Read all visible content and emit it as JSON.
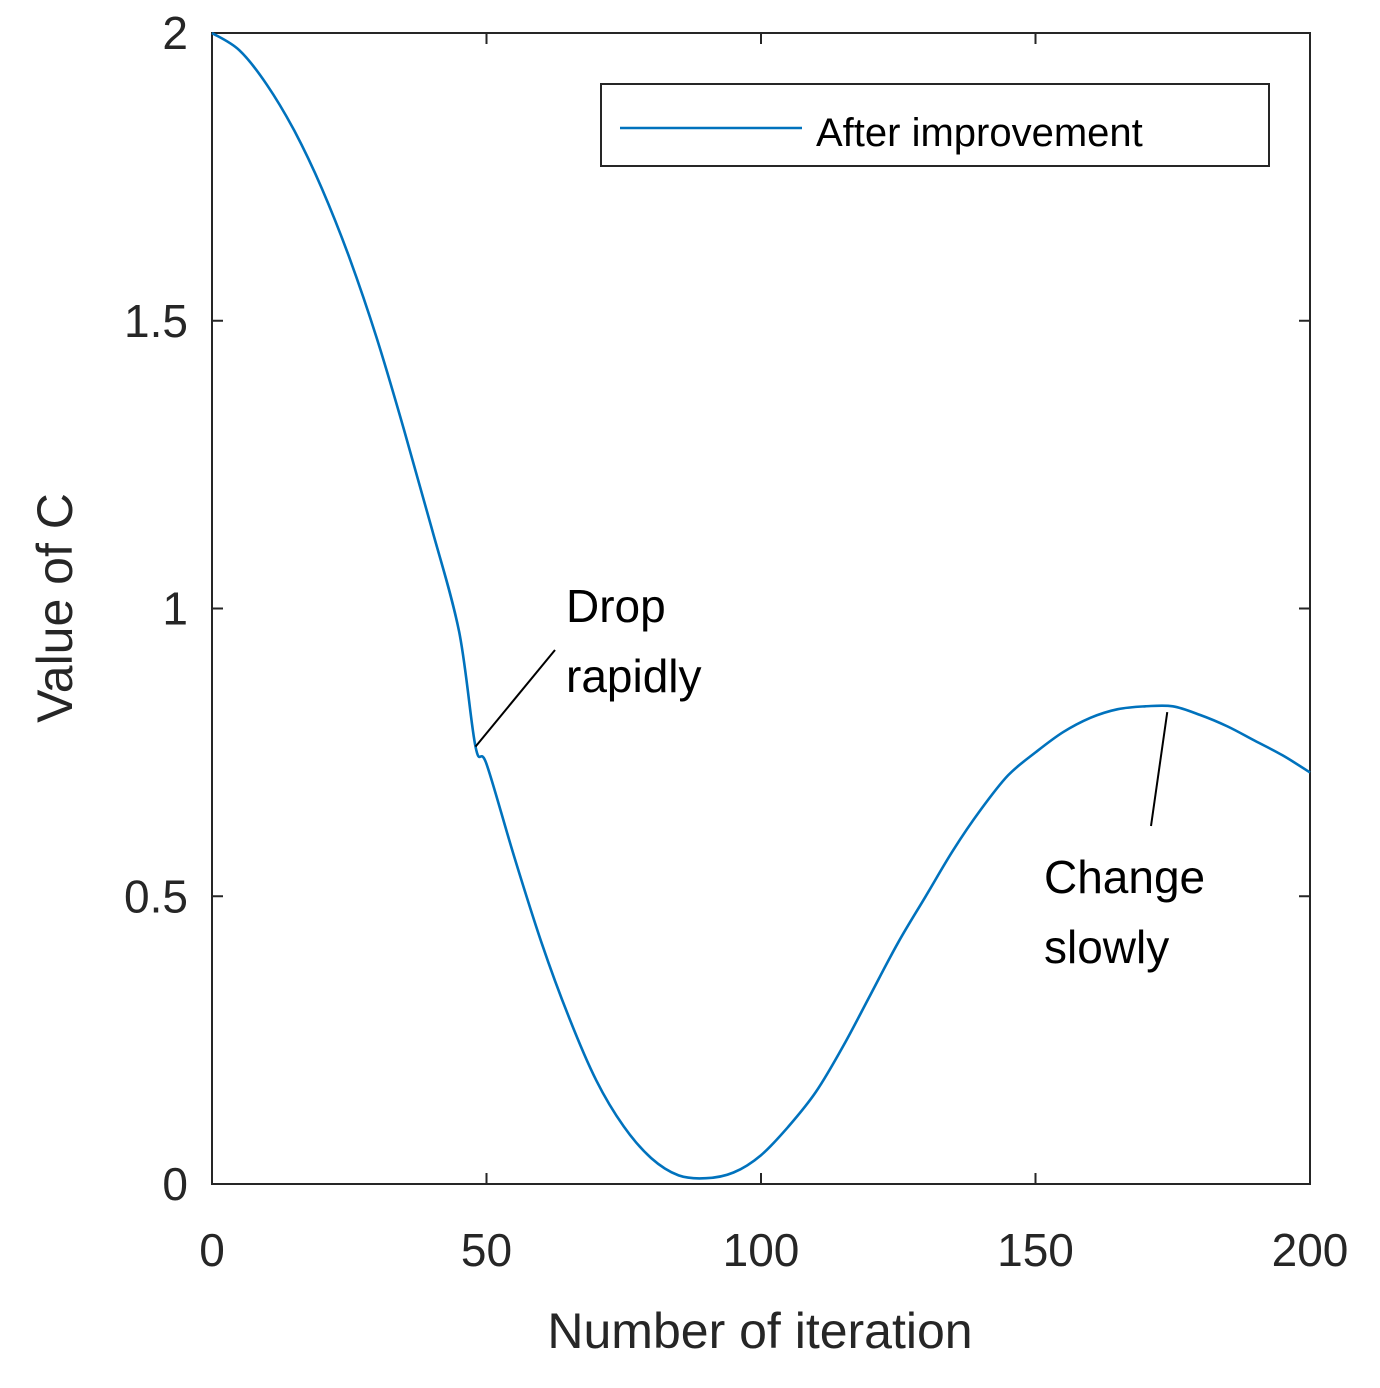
{
  "chart_data": {
    "type": "line",
    "title": "",
    "xlabel": "Number of iteration",
    "ylabel": "Value of C",
    "xlim": [
      0,
      200
    ],
    "ylim": [
      0,
      2
    ],
    "xticks": [
      0,
      50,
      100,
      150,
      200
    ],
    "yticks": [
      0,
      0.5,
      1,
      1.5,
      2
    ],
    "xtick_labels": [
      "0",
      "50",
      "100",
      "150",
      "200"
    ],
    "ytick_labels": [
      "0",
      "0.5",
      "1",
      "1.5",
      "2"
    ],
    "grid": false,
    "legend_position": "top-right",
    "series": [
      {
        "name": "After improvement",
        "color": "#0072BD",
        "x": [
          0,
          5,
          10,
          15,
          20,
          25,
          30,
          35,
          40,
          45,
          48,
          50,
          55,
          60,
          65,
          70,
          75,
          80,
          85,
          90,
          95,
          100,
          105,
          110,
          115,
          120,
          125,
          130,
          135,
          140,
          145,
          150,
          155,
          160,
          165,
          170,
          175,
          180,
          185,
          190,
          195,
          200
        ],
        "y": [
          2.0,
          1.97,
          1.91,
          1.83,
          1.73,
          1.61,
          1.47,
          1.31,
          1.14,
          0.96,
          0.76,
          0.73,
          0.57,
          0.42,
          0.29,
          0.18,
          0.1,
          0.045,
          0.015,
          0.01,
          0.02,
          0.05,
          0.1,
          0.16,
          0.24,
          0.33,
          0.42,
          0.5,
          0.58,
          0.65,
          0.71,
          0.75,
          0.785,
          0.81,
          0.825,
          0.83,
          0.83,
          0.815,
          0.795,
          0.77,
          0.745,
          0.715
        ]
      }
    ],
    "annotations": [
      {
        "text_lines": [
          "Drop",
          "rapidly"
        ],
        "point": [
          48,
          0.76
        ],
        "text_anchor": [
          65,
          0.92
        ]
      },
      {
        "text_lines": [
          "Change",
          "slowly"
        ],
        "point": [
          174,
          0.82
        ],
        "text_anchor": [
          172,
          0.62
        ]
      }
    ]
  }
}
